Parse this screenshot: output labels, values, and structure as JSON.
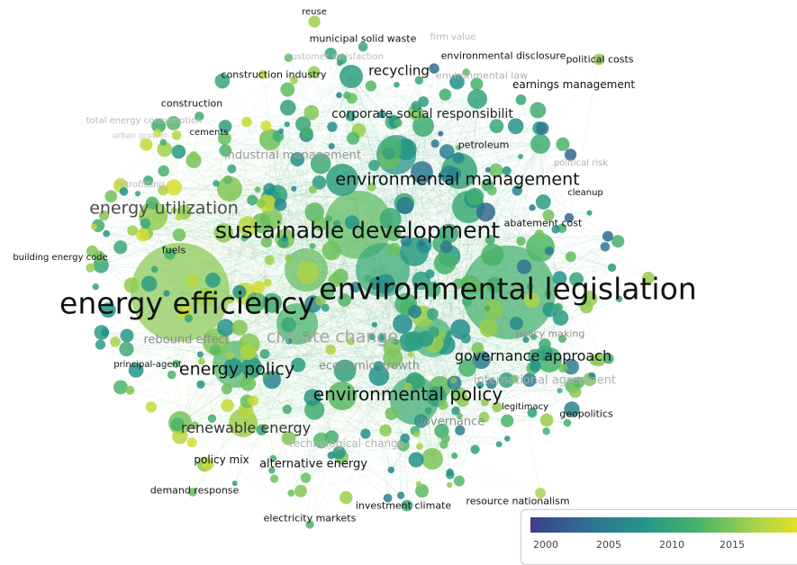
{
  "map": {
    "labels": [
      {
        "id": "reuse",
        "text": "reuse"
      },
      {
        "id": "municipal-solid-waste",
        "text": "municipal solid waste"
      },
      {
        "id": "firm-value",
        "text": "firm value"
      },
      {
        "id": "environmental-disclosure",
        "text": "environmental disclosure"
      },
      {
        "id": "political-costs",
        "text": "political costs"
      },
      {
        "id": "customer-satisfaction",
        "text": "customer satisfaction"
      },
      {
        "id": "construction-industry",
        "text": "construction industry"
      },
      {
        "id": "recycling",
        "text": "recycling"
      },
      {
        "id": "environmental-law",
        "text": "environmental law"
      },
      {
        "id": "earnings-management",
        "text": "earnings management"
      },
      {
        "id": "construction",
        "text": "construction"
      },
      {
        "id": "corporate-social-responsibility",
        "text": "corporate social responsibilit"
      },
      {
        "id": "total-energy-consumption",
        "text": "total energy consumption"
      },
      {
        "id": "urban-growth",
        "text": "urban growth"
      },
      {
        "id": "cements",
        "text": "cements"
      },
      {
        "id": "petroleum",
        "text": "petroleum"
      },
      {
        "id": "industrial-management",
        "text": "industrial management"
      },
      {
        "id": "political-risk",
        "text": "political risk"
      },
      {
        "id": "environmental-management",
        "text": "environmental management"
      },
      {
        "id": "cleanup",
        "text": "cleanup"
      },
      {
        "id": "retrofitting",
        "text": "retrofitting"
      },
      {
        "id": "energy-utilization",
        "text": "energy utilization"
      },
      {
        "id": "sustainable-development",
        "text": "sustainable development"
      },
      {
        "id": "abatement-cost",
        "text": "abatement cost"
      },
      {
        "id": "fuels",
        "text": "fuels"
      },
      {
        "id": "building-energy-code",
        "text": "building energy code"
      },
      {
        "id": "environmental-legislation",
        "text": "environmental legislation"
      },
      {
        "id": "energy-efficiency",
        "text": "energy efficiency"
      },
      {
        "id": "climate-change",
        "text": "climate change"
      },
      {
        "id": "rebound-effect",
        "text": "rebound effect"
      },
      {
        "id": "policy-making",
        "text": "policy making"
      },
      {
        "id": "principal-agent",
        "text": "principal-agent"
      },
      {
        "id": "energy-policy",
        "text": "energy policy"
      },
      {
        "id": "economic-growth",
        "text": "economic growth"
      },
      {
        "id": "governance-approach",
        "text": "governance approach"
      },
      {
        "id": "international-agreement",
        "text": "international agreement"
      },
      {
        "id": "environmental-policy",
        "text": "environmental policy"
      },
      {
        "id": "legitimacy",
        "text": "legitimacy"
      },
      {
        "id": "geopolitics",
        "text": "geopolitics"
      },
      {
        "id": "governance",
        "text": "governance"
      },
      {
        "id": "renewable-energy",
        "text": "renewable energy"
      },
      {
        "id": "technological-change",
        "text": "technological change"
      },
      {
        "id": "policy-mix",
        "text": "policy mix"
      },
      {
        "id": "alternative-energy",
        "text": "alternative energy"
      },
      {
        "id": "demand-response",
        "text": "demand response"
      },
      {
        "id": "investment-climate",
        "text": "investment climate"
      },
      {
        "id": "resource-nationalism",
        "text": "resource nationalism"
      },
      {
        "id": "electricity-markets",
        "text": "electricity markets"
      }
    ]
  },
  "legend": {
    "colors": [
      "#3c3f8a",
      "#2f6f92",
      "#24948a",
      "#47b36a",
      "#a6d24a",
      "#f6e51e"
    ],
    "ticks": [
      "2000",
      "2005",
      "2010",
      "2015"
    ]
  }
}
